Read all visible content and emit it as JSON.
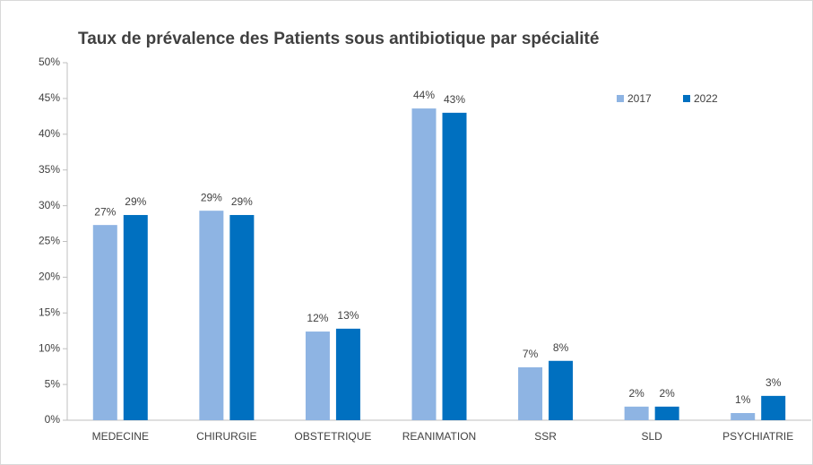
{
  "chart_data": {
    "type": "bar",
    "title": "Taux de prévalence des Patients sous antibiotique par spécialité",
    "categories": [
      "MEDECINE",
      "CHIRURGIE",
      "OBSTETRIQUE",
      "REANIMATION",
      "SSR",
      "SLD",
      "PSYCHIATRIE"
    ],
    "series": [
      {
        "name": "2017",
        "color": "#8eb4e3",
        "values": [
          27.3,
          29.3,
          12.4,
          43.6,
          7.4,
          1.9,
          1.0
        ],
        "value_labels": [
          "27%",
          "29%",
          "12%",
          "44%",
          "7%",
          "2%",
          "1%"
        ]
      },
      {
        "name": "2022",
        "color": "#0070c0",
        "values": [
          28.7,
          28.7,
          12.8,
          43.0,
          8.3,
          1.9,
          3.4
        ],
        "value_labels": [
          "29%",
          "29%",
          "13%",
          "43%",
          "8%",
          "2%",
          "3%"
        ]
      }
    ],
    "ylim": [
      0,
      50
    ],
    "yticks": [
      {
        "value": 0,
        "label": "0%"
      },
      {
        "value": 5,
        "label": "5%"
      },
      {
        "value": 10,
        "label": "10%"
      },
      {
        "value": 15,
        "label": "15%"
      },
      {
        "value": 20,
        "label": "20%"
      },
      {
        "value": 25,
        "label": "25%"
      },
      {
        "value": 30,
        "label": "30%"
      },
      {
        "value": 35,
        "label": "35%"
      },
      {
        "value": 40,
        "label": "40%"
      },
      {
        "value": 45,
        "label": "45%"
      },
      {
        "value": 50,
        "label": "50%"
      }
    ],
    "grid": false,
    "legend": "top-right"
  }
}
